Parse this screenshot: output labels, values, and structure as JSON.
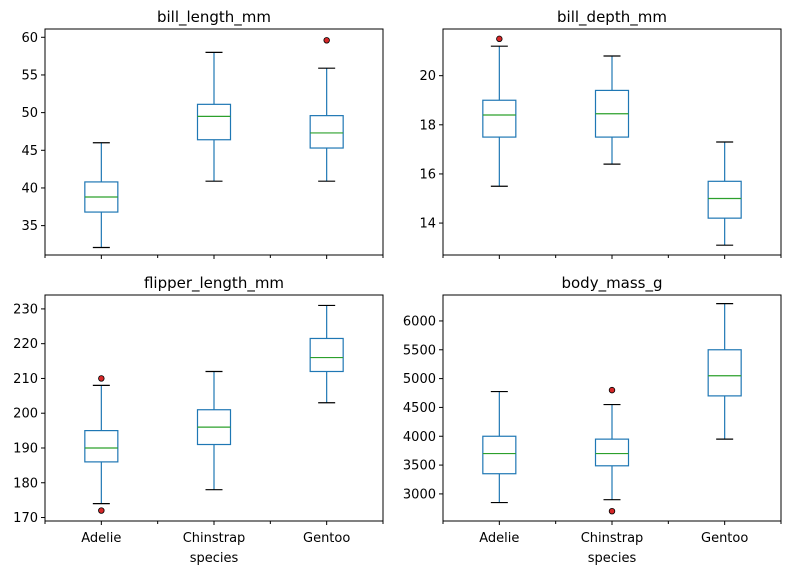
{
  "chart_data": [
    {
      "type": "box",
      "title": "bill_length_mm",
      "xlabel": "",
      "categories": [
        "Adelie",
        "Chinstrap",
        "Gentoo"
      ],
      "ylim": [
        31.1,
        61.1
      ],
      "yticks": [
        35,
        40,
        45,
        50,
        55,
        60
      ],
      "boxes": [
        {
          "category": "Adelie",
          "whisker_low": 32.1,
          "q1": 36.8,
          "median": 38.8,
          "q3": 40.8,
          "whisker_high": 46.0,
          "outliers": []
        },
        {
          "category": "Chinstrap",
          "whisker_low": 40.9,
          "q1": 46.4,
          "median": 49.5,
          "q3": 51.1,
          "whisker_high": 58.0,
          "outliers": []
        },
        {
          "category": "Gentoo",
          "whisker_low": 40.9,
          "q1": 45.3,
          "median": 47.3,
          "q3": 49.6,
          "whisker_high": 55.9,
          "outliers": [
            59.6
          ]
        }
      ],
      "colors": {
        "box": "#1f77b4",
        "median": "#2ca02c",
        "outlier": "#d62728"
      }
    },
    {
      "type": "box",
      "title": "bill_depth_mm",
      "xlabel": "",
      "categories": [
        "Adelie",
        "Chinstrap",
        "Gentoo"
      ],
      "ylim": [
        12.7,
        21.9
      ],
      "yticks": [
        14,
        16,
        18,
        20
      ],
      "boxes": [
        {
          "category": "Adelie",
          "whisker_low": 15.5,
          "q1": 17.5,
          "median": 18.4,
          "q3": 19.0,
          "whisker_high": 21.2,
          "outliers": [
            21.5
          ]
        },
        {
          "category": "Chinstrap",
          "whisker_low": 16.4,
          "q1": 17.5,
          "median": 18.45,
          "q3": 19.4,
          "whisker_high": 20.8,
          "outliers": []
        },
        {
          "category": "Gentoo",
          "whisker_low": 13.1,
          "q1": 14.2,
          "median": 15.0,
          "q3": 15.7,
          "whisker_high": 17.3,
          "outliers": []
        }
      ],
      "colors": {
        "box": "#1f77b4",
        "median": "#2ca02c",
        "outlier": "#d62728"
      }
    },
    {
      "type": "box",
      "title": "flipper_length_mm",
      "xlabel": "species",
      "categories": [
        "Adelie",
        "Chinstrap",
        "Gentoo"
      ],
      "ylim": [
        169,
        234
      ],
      "yticks": [
        170,
        180,
        190,
        200,
        210,
        220,
        230
      ],
      "boxes": [
        {
          "category": "Adelie",
          "whisker_low": 174,
          "q1": 186,
          "median": 190,
          "q3": 195,
          "whisker_high": 208,
          "outliers": [
            210,
            172
          ]
        },
        {
          "category": "Chinstrap",
          "whisker_low": 178,
          "q1": 191,
          "median": 196,
          "q3": 201,
          "whisker_high": 212,
          "outliers": []
        },
        {
          "category": "Gentoo",
          "whisker_low": 203,
          "q1": 212,
          "median": 216,
          "q3": 221.5,
          "whisker_high": 231,
          "outliers": []
        }
      ],
      "colors": {
        "box": "#1f77b4",
        "median": "#2ca02c",
        "outlier": "#d62728"
      }
    },
    {
      "type": "box",
      "title": "body_mass_g",
      "xlabel": "species",
      "categories": [
        "Adelie",
        "Chinstrap",
        "Gentoo"
      ],
      "ylim": [
        2530,
        6450
      ],
      "yticks": [
        3000,
        3500,
        4000,
        4500,
        5000,
        5500,
        6000
      ],
      "boxes": [
        {
          "category": "Adelie",
          "whisker_low": 2850,
          "q1": 3350,
          "median": 3700,
          "q3": 4000,
          "whisker_high": 4775,
          "outliers": []
        },
        {
          "category": "Chinstrap",
          "whisker_low": 2900,
          "q1": 3487.5,
          "median": 3700,
          "q3": 3950,
          "whisker_high": 4550,
          "outliers": [
            4800,
            2700
          ]
        },
        {
          "category": "Gentoo",
          "whisker_low": 3950,
          "q1": 4700,
          "median": 5050,
          "q3": 5500,
          "whisker_high": 6300,
          "outliers": []
        }
      ],
      "colors": {
        "box": "#1f77b4",
        "median": "#2ca02c",
        "outlier": "#d62728"
      }
    }
  ]
}
